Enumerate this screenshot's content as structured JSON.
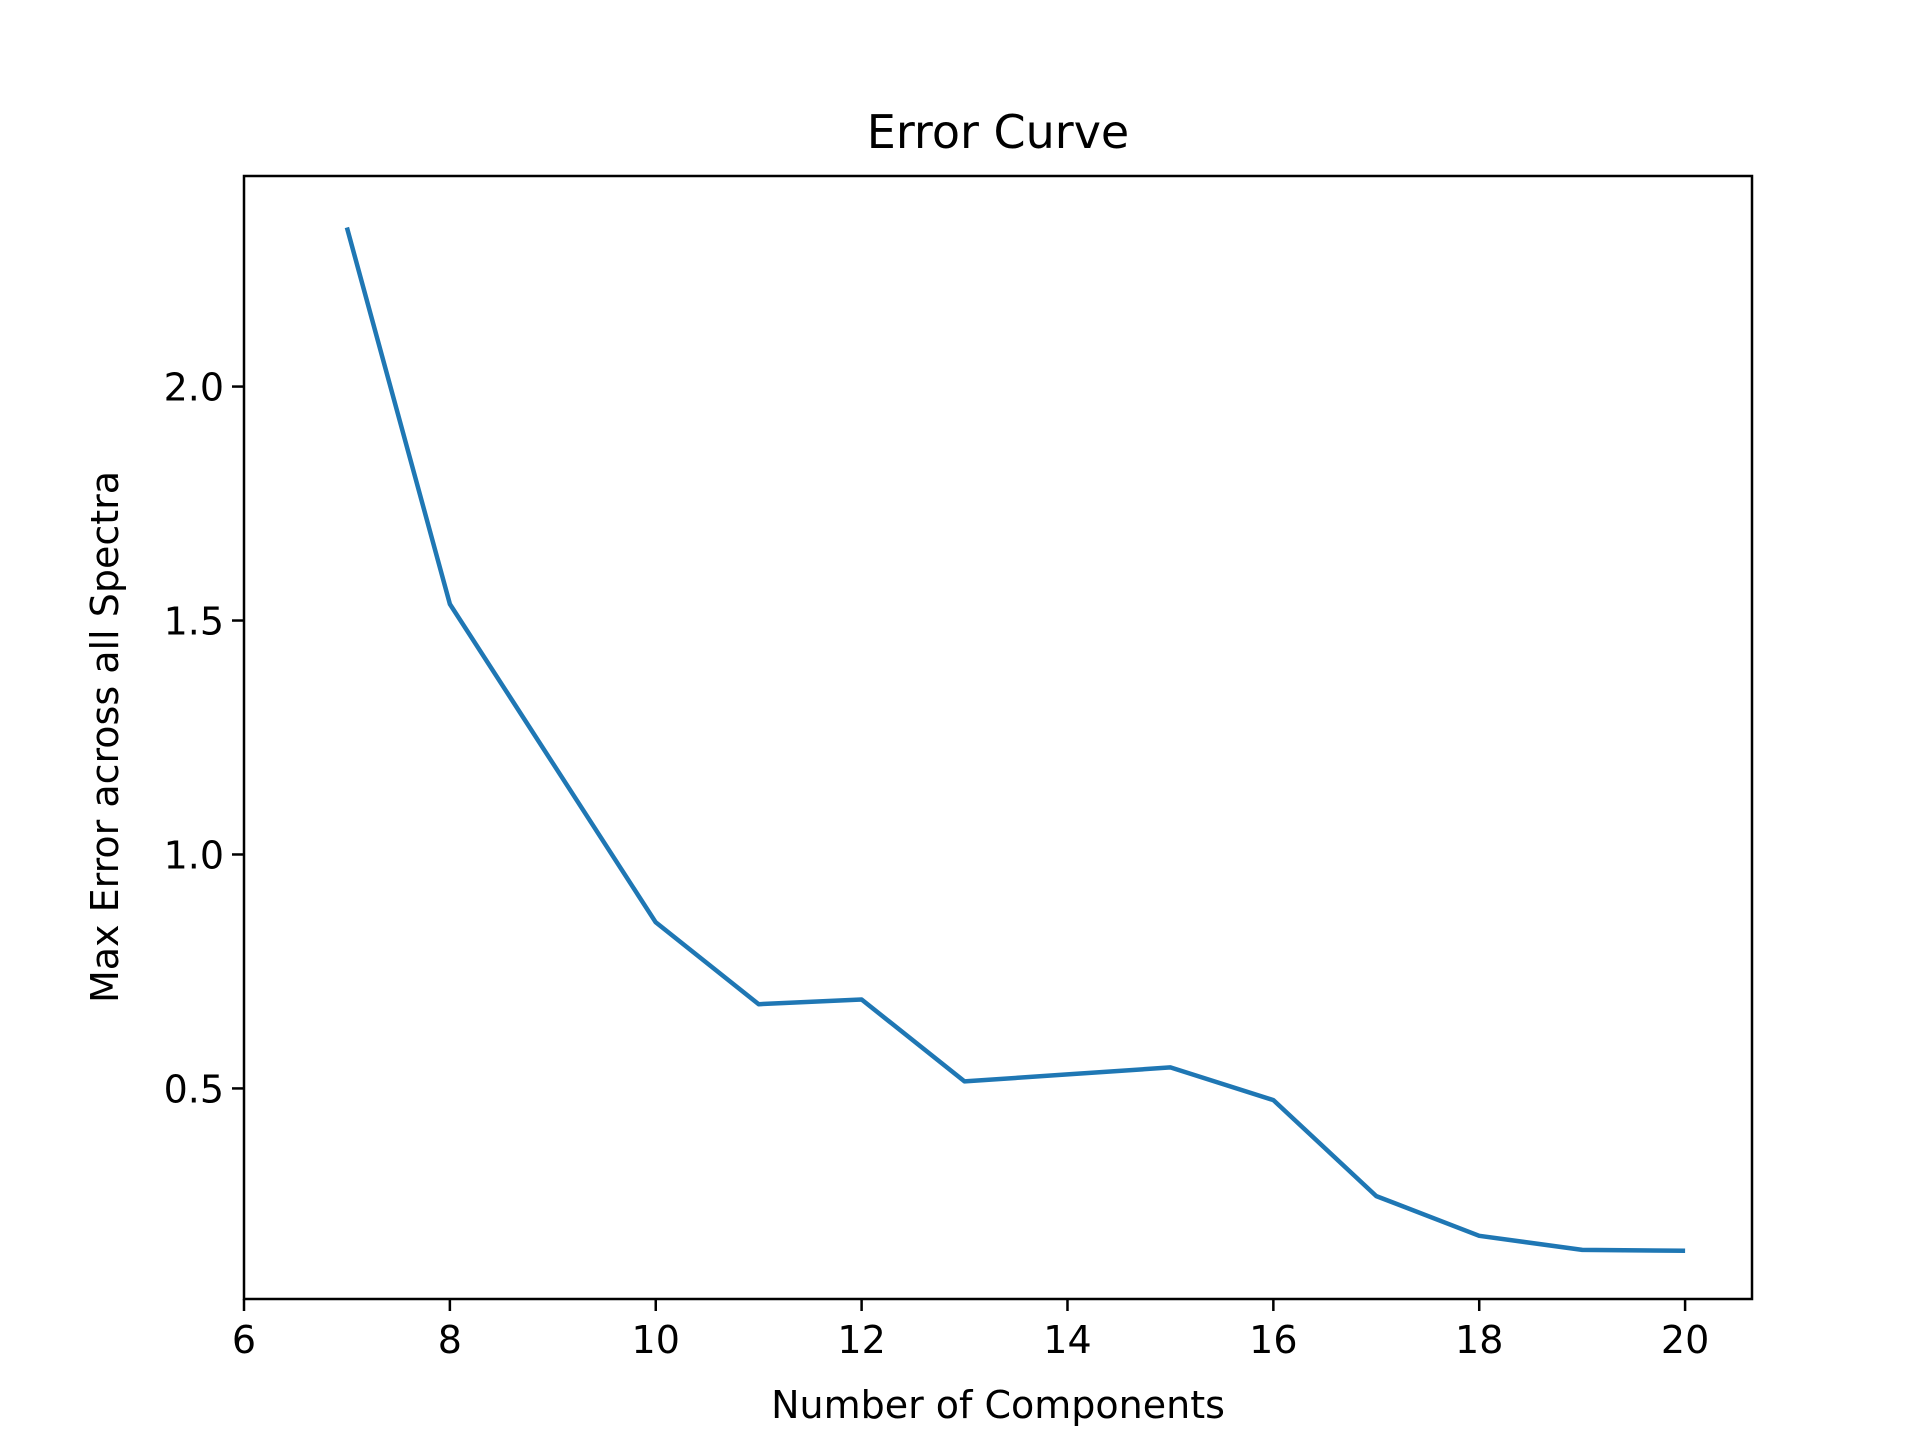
{
  "chart_data": {
    "type": "line",
    "title": "Error Curve",
    "xlabel": "Number of Components",
    "ylabel": "Max Error across all Spectra",
    "xlim": [
      6,
      20.65
    ],
    "ylim": [
      0.05,
      2.45
    ],
    "xticks": [
      6,
      8,
      10,
      12,
      14,
      16,
      18,
      20
    ],
    "xtick_labels": [
      "6",
      "8",
      "10",
      "12",
      "14",
      "16",
      "18",
      "20"
    ],
    "yticks": [
      0.5,
      1.0,
      1.5,
      2.0
    ],
    "ytick_labels": [
      "0.5",
      "1.0",
      "1.5",
      "2.0"
    ],
    "grid": false,
    "series": [
      {
        "color": "#1f77b4",
        "x": [
          7,
          8,
          9,
          10,
          11,
          12,
          13,
          14,
          15,
          16,
          17,
          18,
          19,
          20
        ],
        "y": [
          2.34,
          1.535,
          1.195,
          0.855,
          0.68,
          0.69,
          0.515,
          0.53,
          0.545,
          0.475,
          0.27,
          0.185,
          0.155,
          0.153
        ]
      }
    ]
  }
}
